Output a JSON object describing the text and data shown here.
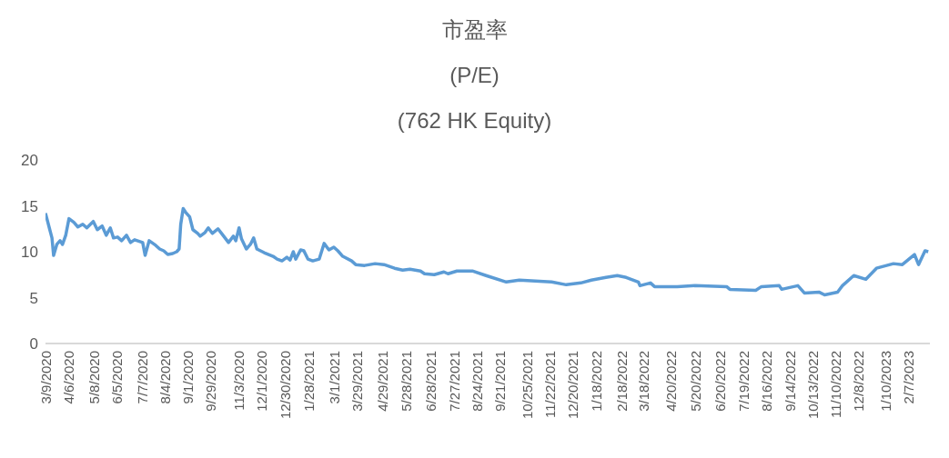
{
  "chart_data": {
    "type": "line",
    "title": "市盈率",
    "subtitle": "(P/E)\n(762 HK Equity)",
    "x": [
      "2020-03-09",
      "2020-03-14",
      "2020-03-17",
      "2020-03-19",
      "2020-03-23",
      "2020-03-27",
      "2020-03-30",
      "2020-04-03",
      "2020-04-07",
      "2020-04-13",
      "2020-04-18",
      "2020-04-24",
      "2020-04-29",
      "2020-05-07",
      "2020-05-12",
      "2020-05-18",
      "2020-05-23",
      "2020-05-28",
      "2020-06-01",
      "2020-06-06",
      "2020-06-11",
      "2020-06-17",
      "2020-06-22",
      "2020-06-27",
      "2020-07-07",
      "2020-07-10",
      "2020-07-15",
      "2020-07-23",
      "2020-07-28",
      "2020-08-02",
      "2020-08-07",
      "2020-08-13",
      "2020-08-18",
      "2020-08-21",
      "2020-08-23",
      "2020-08-26",
      "2020-08-29",
      "2020-09-03",
      "2020-09-07",
      "2020-09-13",
      "2020-09-16",
      "2020-09-22",
      "2020-09-26",
      "2020-10-01",
      "2020-10-08",
      "2020-10-15",
      "2020-10-21",
      "2020-10-27",
      "2020-10-30",
      "2020-11-03",
      "2020-11-06",
      "2020-11-12",
      "2020-11-17",
      "2020-11-21",
      "2020-11-25",
      "2020-12-04",
      "2020-12-15",
      "2020-12-20",
      "2020-12-26",
      "2021-01-01",
      "2021-01-05",
      "2021-01-09",
      "2021-01-12",
      "2021-01-18",
      "2021-01-22",
      "2021-01-27",
      "2021-02-02",
      "2021-02-10",
      "2021-02-16",
      "2021-02-22",
      "2021-02-28",
      "2021-03-05",
      "2021-03-11",
      "2021-03-22",
      "2021-03-27",
      "2021-04-07",
      "2021-04-20",
      "2021-05-01",
      "2021-05-14",
      "2021-05-24",
      "2021-06-02",
      "2021-06-15",
      "2021-06-20",
      "2021-07-02",
      "2021-07-14",
      "2021-07-19",
      "2021-07-30",
      "2021-08-18",
      "2021-09-04",
      "2021-09-29",
      "2021-10-15",
      "2021-11-24",
      "2021-12-12",
      "2021-12-30",
      "2022-01-12",
      "2022-01-30",
      "2022-02-13",
      "2022-02-24",
      "2022-03-11",
      "2022-03-13",
      "2022-03-26",
      "2022-03-31",
      "2022-04-28",
      "2022-05-20",
      "2022-06-28",
      "2022-07-02",
      "2022-08-03",
      "2022-08-10",
      "2022-09-01",
      "2022-09-04",
      "2022-09-24",
      "2022-10-02",
      "2022-10-20",
      "2022-10-27",
      "2022-11-12",
      "2022-11-18",
      "2022-12-02",
      "2022-12-17",
      "2022-12-30",
      "2023-01-20",
      "2023-01-31",
      "2023-02-15",
      "2023-02-20",
      "2023-02-28",
      "2023-03-04"
    ],
    "series": [
      {
        "color": "#5b9bd5",
        "values": [
          14.2,
          12.5,
          11.5,
          9.6,
          10.8,
          11.2,
          10.8,
          11.8,
          13.6,
          13.2,
          12.7,
          13.0,
          12.6,
          13.3,
          12.4,
          12.8,
          11.8,
          12.6,
          11.5,
          11.6,
          11.2,
          11.8,
          11.0,
          11.3,
          11.0,
          9.6,
          11.2,
          10.7,
          10.3,
          10.1,
          9.7,
          9.8,
          10.0,
          10.3,
          13.0,
          14.7,
          14.3,
          13.8,
          12.4,
          12.0,
          11.7,
          12.1,
          12.6,
          12.0,
          12.5,
          11.7,
          11.0,
          11.7,
          11.2,
          12.6,
          11.4,
          10.3,
          10.8,
          11.5,
          10.3,
          9.9,
          9.5,
          9.2,
          9.0,
          9.4,
          9.1,
          10.0,
          9.2,
          10.2,
          10.1,
          9.2,
          9.0,
          9.2,
          10.9,
          10.2,
          10.5,
          10.1,
          9.5,
          9.0,
          8.6,
          8.5,
          8.7,
          8.6,
          8.2,
          8.0,
          8.1,
          7.9,
          7.6,
          7.5,
          7.8,
          7.6,
          7.9,
          7.9,
          7.4,
          6.7,
          6.9,
          6.7,
          6.4,
          6.6,
          6.9,
          7.2,
          7.4,
          7.2,
          6.7,
          6.3,
          6.6,
          6.2,
          6.2,
          6.3,
          6.2,
          5.9,
          5.8,
          6.2,
          6.3,
          5.9,
          6.3,
          5.5,
          5.6,
          5.3,
          5.6,
          6.3,
          7.4,
          7.0,
          8.2,
          8.7,
          8.6,
          9.7,
          8.6,
          10.1,
          10.0
        ]
      }
    ],
    "xlim": [
      "2020-03-09",
      "2023-03-06"
    ],
    "xticks": [
      {
        "value": "2020-03-09",
        "label": "3/9/2020"
      },
      {
        "value": "2020-04-06",
        "label": "4/6/2020"
      },
      {
        "value": "2020-05-08",
        "label": "5/8/2020"
      },
      {
        "value": "2020-06-05",
        "label": "6/5/2020"
      },
      {
        "value": "2020-07-07",
        "label": "7/7/2020"
      },
      {
        "value": "2020-08-04",
        "label": "8/4/2020"
      },
      {
        "value": "2020-09-01",
        "label": "9/1/2020"
      },
      {
        "value": "2020-09-29",
        "label": "9/29/2020"
      },
      {
        "value": "2020-11-03",
        "label": "11/3/2020"
      },
      {
        "value": "2020-12-01",
        "label": "12/1/2020"
      },
      {
        "value": "2020-12-30",
        "label": "12/30/2020"
      },
      {
        "value": "2021-01-28",
        "label": "1/28/2021"
      },
      {
        "value": "2021-03-01",
        "label": "3/1/2021"
      },
      {
        "value": "2021-03-29",
        "label": "3/29/2021"
      },
      {
        "value": "2021-04-29",
        "label": "4/29/2021"
      },
      {
        "value": "2021-05-28",
        "label": "5/28/2021"
      },
      {
        "value": "2021-06-28",
        "label": "6/28/2021"
      },
      {
        "value": "2021-07-27",
        "label": "7/27/2021"
      },
      {
        "value": "2021-08-24",
        "label": "8/24/2021"
      },
      {
        "value": "2021-09-21",
        "label": "9/21/2021"
      },
      {
        "value": "2021-10-25",
        "label": "10/25/2021"
      },
      {
        "value": "2021-11-22",
        "label": "11/22/2021"
      },
      {
        "value": "2021-12-20",
        "label": "12/20/2021"
      },
      {
        "value": "2022-01-18",
        "label": "1/18/2022"
      },
      {
        "value": "2022-02-18",
        "label": "2/18/2022"
      },
      {
        "value": "2022-03-18",
        "label": "3/18/2022"
      },
      {
        "value": "2022-04-20",
        "label": "4/20/2022"
      },
      {
        "value": "2022-05-20",
        "label": "5/20/2022"
      },
      {
        "value": "2022-06-20",
        "label": "6/20/2022"
      },
      {
        "value": "2022-07-19",
        "label": "7/19/2022"
      },
      {
        "value": "2022-08-16",
        "label": "8/16/2022"
      },
      {
        "value": "2022-09-14",
        "label": "9/14/2022"
      },
      {
        "value": "2022-10-13",
        "label": "10/13/2022"
      },
      {
        "value": "2022-11-10",
        "label": "11/10/2022"
      },
      {
        "value": "2022-12-08",
        "label": "12/8/2022"
      },
      {
        "value": "2023-01-10",
        "label": "1/10/2023"
      },
      {
        "value": "2023-02-07",
        "label": "2/7/2023"
      }
    ],
    "ylim": [
      0,
      20
    ],
    "yticks": [
      0,
      5,
      10,
      15,
      20
    ],
    "marker": "none",
    "line_style": "solid"
  }
}
